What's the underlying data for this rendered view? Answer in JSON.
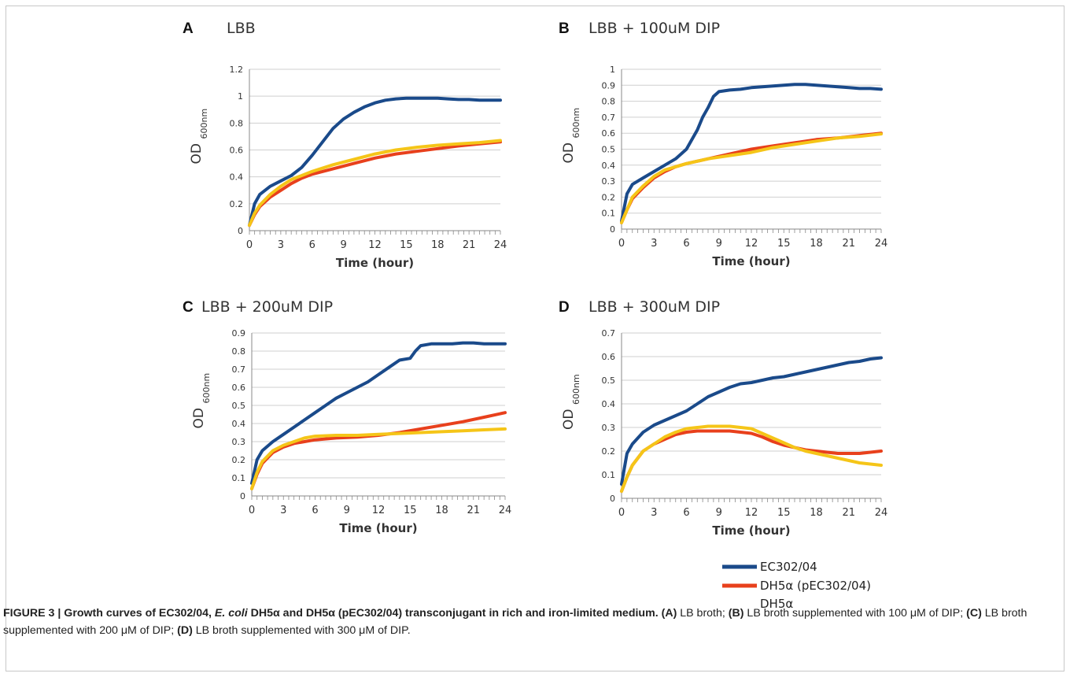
{
  "chart_data": [
    {
      "type": "line",
      "letter": "A",
      "title": "LBB",
      "xlabel": "Time (hour)",
      "ylabel": "OD",
      "ylabel_sub": "600nm",
      "xlim": [
        0,
        24
      ],
      "ylim": [
        0,
        1.2
      ],
      "xticks": [
        0,
        3,
        6,
        9,
        12,
        15,
        18,
        21,
        24
      ],
      "yticks": [
        0,
        0.2,
        0.4,
        0.6,
        0.8,
        1,
        1.2
      ],
      "ytick_labels": [
        "0",
        "0.2",
        "0.4",
        "0.6",
        "0.8",
        "1",
        "1.2"
      ],
      "grid": true,
      "series": [
        {
          "name": "EC302/04",
          "color": "#1a4a8a",
          "x": [
            0,
            0.5,
            1,
            2,
            3,
            4,
            5,
            6,
            7,
            8,
            9,
            10,
            11,
            12,
            13,
            14,
            15,
            16,
            17,
            18,
            19,
            20,
            21,
            22,
            23,
            24
          ],
          "y": [
            0.04,
            0.2,
            0.27,
            0.33,
            0.37,
            0.41,
            0.47,
            0.56,
            0.66,
            0.76,
            0.83,
            0.88,
            0.92,
            0.95,
            0.97,
            0.98,
            0.985,
            0.985,
            0.985,
            0.985,
            0.98,
            0.975,
            0.975,
            0.97,
            0.97,
            0.97
          ]
        },
        {
          "name": "DH5α (pEC302/04)",
          "color": "#e8401c",
          "x": [
            0,
            0.5,
            1,
            2,
            3,
            4,
            5,
            6,
            8,
            10,
            12,
            14,
            16,
            18,
            20,
            22,
            24
          ],
          "y": [
            0.04,
            0.12,
            0.18,
            0.25,
            0.3,
            0.35,
            0.39,
            0.42,
            0.46,
            0.5,
            0.54,
            0.57,
            0.59,
            0.61,
            0.63,
            0.645,
            0.66
          ]
        },
        {
          "name": "DH5α",
          "color": "#f5c518",
          "x": [
            0,
            0.5,
            1,
            2,
            3,
            4,
            5,
            6,
            8,
            10,
            12,
            14,
            16,
            18,
            20,
            22,
            24
          ],
          "y": [
            0.04,
            0.13,
            0.19,
            0.27,
            0.33,
            0.38,
            0.41,
            0.44,
            0.49,
            0.53,
            0.57,
            0.6,
            0.62,
            0.635,
            0.645,
            0.655,
            0.67
          ]
        }
      ]
    },
    {
      "type": "line",
      "letter": "B",
      "title": "LBB + 100uM DIP",
      "xlabel": "Time (hour)",
      "ylabel": "OD",
      "ylabel_sub": "600nm",
      "xlim": [
        0,
        24
      ],
      "ylim": [
        0,
        1
      ],
      "xticks": [
        0,
        3,
        6,
        9,
        12,
        15,
        18,
        21,
        24
      ],
      "yticks": [
        0,
        0.1,
        0.2,
        0.3,
        0.4,
        0.5,
        0.6,
        0.7,
        0.8,
        0.9,
        1
      ],
      "ytick_labels": [
        "0",
        "0.1",
        "0.2",
        "0.3",
        "0.4",
        "0.5",
        "0.6",
        "0.7",
        "0.8",
        "0.9",
        "1"
      ],
      "grid": true,
      "series": [
        {
          "name": "EC302/04",
          "color": "#1a4a8a",
          "x": [
            0,
            0.5,
            1,
            2,
            3,
            4,
            5,
            6,
            7,
            7.5,
            8,
            8.5,
            9,
            10,
            11,
            12,
            13,
            14,
            15,
            16,
            17,
            18,
            19,
            20,
            21,
            22,
            23,
            24
          ],
          "y": [
            0.05,
            0.22,
            0.28,
            0.32,
            0.36,
            0.4,
            0.44,
            0.5,
            0.62,
            0.7,
            0.76,
            0.83,
            0.86,
            0.87,
            0.875,
            0.885,
            0.89,
            0.895,
            0.9,
            0.905,
            0.905,
            0.9,
            0.895,
            0.89,
            0.885,
            0.88,
            0.88,
            0.875
          ]
        },
        {
          "name": "DH5α (pEC302/04)",
          "color": "#e8401c",
          "x": [
            0,
            0.5,
            1,
            2,
            3,
            4,
            5,
            6,
            8,
            10,
            12,
            14,
            16,
            18,
            20,
            22,
            24
          ],
          "y": [
            0.04,
            0.12,
            0.19,
            0.26,
            0.32,
            0.36,
            0.39,
            0.41,
            0.44,
            0.47,
            0.5,
            0.52,
            0.54,
            0.56,
            0.57,
            0.585,
            0.6
          ]
        },
        {
          "name": "DH5α",
          "color": "#f5c518",
          "x": [
            0,
            0.5,
            1,
            2,
            3,
            4,
            5,
            6,
            8,
            10,
            12,
            14,
            16,
            18,
            20,
            22,
            24
          ],
          "y": [
            0.04,
            0.12,
            0.2,
            0.27,
            0.33,
            0.37,
            0.39,
            0.41,
            0.44,
            0.46,
            0.48,
            0.51,
            0.53,
            0.55,
            0.57,
            0.58,
            0.595
          ]
        }
      ]
    },
    {
      "type": "line",
      "letter": "C",
      "title": "LBB + 200uM DIP",
      "xlabel": "Time (hour)",
      "ylabel": "OD",
      "ylabel_sub": "600nm",
      "xlim": [
        0,
        24
      ],
      "ylim": [
        0,
        0.9
      ],
      "xticks": [
        0,
        3,
        6,
        9,
        12,
        15,
        18,
        21,
        24
      ],
      "yticks": [
        0,
        0.1,
        0.2,
        0.3,
        0.4,
        0.5,
        0.6,
        0.7,
        0.8,
        0.9
      ],
      "ytick_labels": [
        "0",
        "0.1",
        "0.2",
        "0.3",
        "0.4",
        "0.5",
        "0.6",
        "0.7",
        "0.8",
        "0.9"
      ],
      "grid": true,
      "series": [
        {
          "name": "EC302/04",
          "color": "#1a4a8a",
          "x": [
            0,
            0.5,
            1,
            2,
            3,
            4,
            5,
            6,
            7,
            8,
            9,
            10,
            11,
            12,
            13,
            14,
            15,
            15.5,
            16,
            17,
            18,
            19,
            20,
            21,
            22,
            23,
            24
          ],
          "y": [
            0.07,
            0.2,
            0.25,
            0.3,
            0.34,
            0.38,
            0.42,
            0.46,
            0.5,
            0.54,
            0.57,
            0.6,
            0.63,
            0.67,
            0.71,
            0.75,
            0.76,
            0.8,
            0.83,
            0.84,
            0.84,
            0.84,
            0.845,
            0.845,
            0.84,
            0.84,
            0.84
          ]
        },
        {
          "name": "DH5α (pEC302/04)",
          "color": "#e8401c",
          "x": [
            0,
            0.5,
            1,
            2,
            3,
            4,
            5,
            6,
            8,
            10,
            12,
            14,
            16,
            18,
            20,
            22,
            24
          ],
          "y": [
            0.04,
            0.12,
            0.18,
            0.24,
            0.27,
            0.29,
            0.3,
            0.31,
            0.32,
            0.325,
            0.335,
            0.35,
            0.37,
            0.39,
            0.41,
            0.435,
            0.46
          ]
        },
        {
          "name": "DH5α",
          "color": "#f5c518",
          "x": [
            0,
            0.5,
            1,
            2,
            3,
            4,
            5,
            6,
            8,
            10,
            12,
            14,
            16,
            18,
            20,
            22,
            24
          ],
          "y": [
            0.04,
            0.13,
            0.19,
            0.25,
            0.28,
            0.3,
            0.32,
            0.33,
            0.335,
            0.335,
            0.34,
            0.345,
            0.35,
            0.355,
            0.36,
            0.365,
            0.37
          ]
        }
      ]
    },
    {
      "type": "line",
      "letter": "D",
      "title": "LBB + 300uM DIP",
      "xlabel": "Time (hour)",
      "ylabel": "OD",
      "ylabel_sub": "600nm",
      "xlim": [
        0,
        24
      ],
      "ylim": [
        0,
        0.7
      ],
      "xticks": [
        0,
        3,
        6,
        9,
        12,
        15,
        18,
        21,
        24
      ],
      "yticks": [
        0,
        0.1,
        0.2,
        0.3,
        0.4,
        0.5,
        0.6,
        0.7
      ],
      "ytick_labels": [
        "0",
        "0.1",
        "0.2",
        "0.3",
        "0.4",
        "0.5",
        "0.6",
        "0.7"
      ],
      "grid": true,
      "series": [
        {
          "name": "EC302/04",
          "color": "#1a4a8a",
          "x": [
            0,
            0.5,
            1,
            2,
            3,
            4,
            5,
            6,
            7,
            8,
            9,
            10,
            11,
            12,
            13,
            14,
            15,
            16,
            17,
            18,
            19,
            20,
            21,
            22,
            23,
            24
          ],
          "y": [
            0.06,
            0.19,
            0.23,
            0.28,
            0.31,
            0.33,
            0.35,
            0.37,
            0.4,
            0.43,
            0.45,
            0.47,
            0.485,
            0.49,
            0.5,
            0.51,
            0.515,
            0.525,
            0.535,
            0.545,
            0.555,
            0.565,
            0.575,
            0.58,
            0.59,
            0.595
          ]
        },
        {
          "name": "DH5α (pEC302/04)",
          "color": "#e8401c",
          "x": [
            0,
            0.5,
            1,
            2,
            3,
            4,
            5,
            6,
            7,
            8,
            9,
            10,
            11,
            12,
            13,
            14,
            15,
            16,
            17,
            18,
            19,
            20,
            21,
            22,
            23,
            24
          ],
          "y": [
            0.03,
            0.09,
            0.14,
            0.2,
            0.23,
            0.25,
            0.27,
            0.28,
            0.285,
            0.285,
            0.285,
            0.285,
            0.28,
            0.275,
            0.26,
            0.24,
            0.225,
            0.215,
            0.205,
            0.2,
            0.195,
            0.19,
            0.19,
            0.19,
            0.195,
            0.2
          ]
        },
        {
          "name": "DH5α",
          "color": "#f5c518",
          "x": [
            0,
            0.5,
            1,
            2,
            3,
            4,
            5,
            6,
            7,
            8,
            9,
            10,
            11,
            12,
            13,
            14,
            15,
            16,
            17,
            18,
            19,
            20,
            21,
            22,
            23,
            24
          ],
          "y": [
            0.03,
            0.09,
            0.14,
            0.2,
            0.23,
            0.26,
            0.28,
            0.295,
            0.3,
            0.305,
            0.305,
            0.305,
            0.3,
            0.295,
            0.275,
            0.255,
            0.235,
            0.215,
            0.2,
            0.19,
            0.18,
            0.17,
            0.16,
            0.15,
            0.145,
            0.14
          ]
        }
      ]
    }
  ],
  "legend": {
    "entries": [
      {
        "label": "EC302/04",
        "color": "#1a4a8a"
      },
      {
        "label": "DH5α (pEC302/04)",
        "color": "#e8401c"
      },
      {
        "label": "DH5α",
        "color": "#f5c518"
      }
    ]
  },
  "caption": {
    "figure_label": "FIGURE 3 | Growth curves of EC302/04, ",
    "species": "E. coli",
    "title_rest": " DH5α and DH5α (pEC302/04) transconjugant in rich and iron-limited medium.",
    "a_label": "(A)",
    "a_text": " LB broth; ",
    "b_label": "(B)",
    "b_text": " LB broth supplemented with 100 μM of DIP; ",
    "c_label": "(C)",
    "c_text": " LB broth supplemented with 200 μM of DIP; ",
    "d_label": "(D)",
    "d_text": " LB broth supplemented with 300 μM of DIP."
  }
}
